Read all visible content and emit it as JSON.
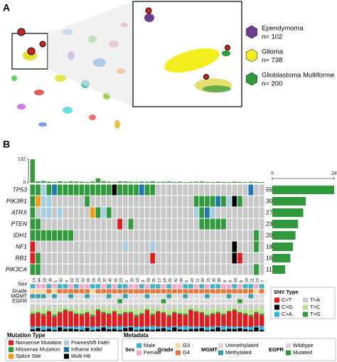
{
  "panel_a": {
    "label": "A",
    "legend": [
      {
        "name": "Ependymoma",
        "count_label": "n= 102",
        "color": "#6a3d8f"
      },
      {
        "name": "Glioma",
        "count_label": "n= 738",
        "color": "#f5ee1e"
      },
      {
        "name": "Glioblastoma Multiforme",
        "count_label": "n= 200",
        "color": "#2e9a3a"
      }
    ]
  },
  "panel_b": {
    "label": "B",
    "samples": [
      "14",
      "44",
      "18",
      "36",
      "1",
      "32",
      "4",
      "22",
      "13",
      "33",
      "26",
      "16",
      "29",
      "37",
      "40",
      "41",
      "23",
      "2",
      "20",
      "12",
      "3",
      "28",
      "31",
      "17",
      "19",
      "25",
      "42",
      "34",
      "5",
      "43",
      "11",
      "39",
      "15",
      "30",
      "38",
      "9",
      "8",
      "10",
      "6",
      "24",
      "21",
      "27",
      "7"
    ],
    "sample_counts": {
      "ylim": [
        0,
        132
      ],
      "yticks": [
        0,
        132
      ],
      "color": "#3a9a3a",
      "values": [
        132,
        8,
        10,
        7,
        5,
        9,
        6,
        8,
        7,
        6,
        5,
        7,
        25,
        9,
        6,
        5,
        8,
        7,
        6,
        5,
        7,
        6,
        8,
        5,
        6,
        7,
        5,
        6,
        4,
        5,
        6,
        7,
        5,
        4,
        6,
        5,
        4,
        6,
        5,
        4,
        6,
        5,
        4
      ]
    },
    "gene_count_axis": {
      "xlim": [
        0,
        24
      ],
      "xticks": [
        0,
        24
      ],
      "color": "#2e9a3a"
    },
    "genes": [
      {
        "name": "TP53",
        "percent_label": "55%",
        "count": 24,
        "cells": [
          1,
          1,
          3,
          1,
          4,
          1,
          1,
          1,
          1,
          1,
          1,
          1,
          1,
          1,
          1,
          5,
          1,
          1,
          1,
          1,
          4,
          1,
          1,
          null,
          null,
          null,
          null,
          null,
          null,
          null,
          null,
          null,
          null,
          null,
          null,
          null,
          null,
          null,
          null,
          null,
          4,
          null,
          null
        ]
      },
      {
        "name": "PIK3R1",
        "percent_label": "30%",
        "count": 13,
        "cells": [
          1,
          2,
          3,
          3,
          null,
          null,
          null,
          null,
          null,
          null,
          1,
          null,
          null,
          null,
          null,
          null,
          null,
          null,
          null,
          null,
          null,
          null,
          null,
          null,
          null,
          null,
          null,
          null,
          null,
          null,
          1,
          1,
          1,
          1,
          4,
          1,
          3,
          5,
          1,
          null,
          null,
          null,
          null
        ]
      },
      {
        "name": "ATRX",
        "percent_label": "27%",
        "count": 12,
        "cells": [
          1,
          null,
          3,
          3,
          null,
          3,
          null,
          null,
          null,
          null,
          null,
          2,
          1,
          3,
          1,
          null,
          null,
          null,
          null,
          null,
          null,
          null,
          null,
          null,
          null,
          null,
          null,
          null,
          null,
          null,
          3,
          1,
          4,
          3,
          null,
          null,
          null,
          null,
          null,
          null,
          null,
          null,
          null
        ]
      },
      {
        "name": "PTEN",
        "percent_label": "23%",
        "count": 10,
        "cells": [
          1,
          1,
          null,
          null,
          null,
          null,
          null,
          null,
          null,
          null,
          null,
          null,
          null,
          null,
          null,
          null,
          0,
          null,
          1,
          null,
          null,
          null,
          null,
          null,
          null,
          null,
          null,
          null,
          null,
          null,
          null,
          1,
          1,
          1,
          1,
          1,
          null,
          null,
          null,
          null,
          null,
          null,
          null
        ]
      },
      {
        "name": "IDH1",
        "percent_label": "20%",
        "count": 9,
        "cells": [
          1,
          1,
          1,
          1,
          1,
          1,
          1,
          1,
          null,
          null,
          null,
          null,
          null,
          null,
          null,
          null,
          null,
          null,
          null,
          null,
          null,
          null,
          null,
          null,
          null,
          null,
          null,
          null,
          null,
          null,
          null,
          null,
          null,
          null,
          null,
          null,
          null,
          null,
          null,
          null,
          null,
          1,
          null
        ]
      },
      {
        "name": "NF1",
        "percent_label": "18%",
        "count": 8,
        "cells": [
          0,
          null,
          null,
          null,
          null,
          null,
          null,
          null,
          null,
          null,
          null,
          null,
          null,
          null,
          null,
          null,
          null,
          3,
          null,
          null,
          null,
          null,
          3,
          null,
          null,
          null,
          null,
          null,
          null,
          null,
          null,
          null,
          null,
          null,
          null,
          null,
          null,
          5,
          null,
          null,
          null,
          1,
          null
        ]
      },
      {
        "name": "RB1",
        "percent_label": "16%",
        "count": 7,
        "cells": [
          0,
          1,
          null,
          null,
          null,
          null,
          null,
          null,
          null,
          null,
          null,
          null,
          null,
          null,
          null,
          null,
          null,
          null,
          null,
          null,
          null,
          null,
          0,
          null,
          null,
          null,
          null,
          null,
          null,
          null,
          null,
          null,
          null,
          null,
          null,
          null,
          null,
          5,
          0,
          null,
          null,
          null,
          null
        ]
      },
      {
        "name": "PIK3CA",
        "percent_label": "11%",
        "count": 5,
        "cells": [
          1,
          1,
          null,
          null,
          null,
          null,
          null,
          null,
          null,
          null,
          null,
          null,
          null,
          null,
          null,
          null,
          null,
          null,
          null,
          null,
          null,
          null,
          null,
          null,
          null,
          null,
          null,
          null,
          null,
          null,
          null,
          null,
          null,
          null,
          null,
          null,
          null,
          null,
          null,
          null,
          null,
          1,
          null
        ]
      }
    ],
    "mutation_types": {
      "title": "Mutation Type",
      "items": [
        {
          "name": "Nonsense Mutation",
          "color": "#e41a1c"
        },
        {
          "name": "Missense Mutation",
          "color": "#2e9a3a"
        },
        {
          "name": "Splice Site",
          "color": "#f39c12"
        },
        {
          "name": "Frameshift Indel",
          "color": "#a6cee3"
        },
        {
          "name": "Inframe Indel",
          "color": "#1f78b4"
        },
        {
          "name": "Multi Hit",
          "color": "#000000"
        }
      ]
    },
    "metadata": {
      "title": "Metadata",
      "tracks": [
        {
          "name": "Sex",
          "levels": [
            {
              "name": "Male",
              "color": "#3cb4c8"
            },
            {
              "name": "Female",
              "color": "#f4a8c8"
            }
          ],
          "values": [
            0,
            1,
            1,
            0,
            1,
            0,
            0,
            1,
            0,
            1,
            1,
            0,
            0,
            1,
            0,
            1,
            0,
            0,
            1,
            1,
            0,
            1,
            0,
            0,
            1,
            0,
            1,
            1,
            0,
            0,
            1,
            0,
            1,
            0,
            0,
            1,
            1,
            0,
            1,
            0,
            0,
            1,
            0
          ]
        },
        {
          "name": "Grade",
          "levels": [
            {
              "name": "G3",
              "color": "#fdd49e"
            },
            {
              "name": "G4",
              "color": "#e8743b"
            }
          ],
          "values": [
            0,
            0,
            0,
            1,
            0,
            1,
            1,
            1,
            1,
            1,
            1,
            0,
            1,
            1,
            1,
            1,
            1,
            1,
            1,
            1,
            1,
            1,
            1,
            1,
            1,
            1,
            1,
            1,
            1,
            1,
            1,
            1,
            1,
            1,
            1,
            1,
            1,
            1,
            1,
            1,
            1,
            0,
            1
          ]
        },
        {
          "name": "MGMT",
          "levels": [
            {
              "name": "Unmethylated",
              "color": "#d9d9d9"
            },
            {
              "name": "Methylated",
              "color": "#3a9ea5"
            }
          ],
          "values": [
            1,
            1,
            1,
            0,
            1,
            0,
            0,
            1,
            0,
            0,
            1,
            0,
            0,
            0,
            1,
            0,
            0,
            1,
            0,
            0,
            0,
            1,
            0,
            0,
            0,
            1,
            0,
            0,
            1,
            0,
            0,
            0,
            1,
            0,
            0,
            0,
            1,
            0,
            0,
            0,
            1,
            0,
            0
          ]
        },
        {
          "name": "EGFR",
          "levels": [
            {
              "name": "Wildtype",
              "color": "#d9d9d9"
            },
            {
              "name": "Mutated",
              "color": "#2e9a3a"
            }
          ],
          "values": [
            0,
            0,
            0,
            0,
            0,
            0,
            0,
            0,
            0,
            0,
            0,
            0,
            0,
            0,
            0,
            0,
            1,
            0,
            0,
            0,
            0,
            0,
            0,
            0,
            1,
            0,
            0,
            0,
            0,
            0,
            0,
            0,
            0,
            0,
            0,
            0,
            0,
            0,
            1,
            0,
            0,
            0,
            0
          ]
        }
      ]
    },
    "snv": {
      "title": "SNV Type",
      "ylim": [
        0,
        100
      ],
      "series": [
        {
          "name": "C>G",
          "color": "#000000",
          "values": [
            8,
            12,
            6,
            10,
            5,
            15,
            9,
            10,
            8,
            6,
            12,
            5,
            9,
            15,
            8,
            10,
            6,
            12,
            15,
            5,
            8,
            9,
            6,
            10,
            12,
            5,
            15,
            8,
            6,
            9,
            10,
            12,
            5,
            8,
            15,
            6,
            10,
            9,
            12,
            8,
            5,
            15,
            6
          ]
        },
        {
          "name": "C>A",
          "color": "#29b6e6",
          "values": [
            10,
            6,
            14,
            8,
            12,
            5,
            9,
            8,
            10,
            14,
            6,
            12,
            9,
            5,
            10,
            8,
            14,
            6,
            5,
            12,
            10,
            9,
            14,
            8,
            6,
            12,
            5,
            10,
            14,
            9,
            8,
            6,
            12,
            10,
            5,
            14,
            8,
            9,
            6,
            10,
            12,
            5,
            14
          ]
        },
        {
          "name": "C>T",
          "color": "#e41a1c",
          "values": [
            45,
            50,
            40,
            55,
            38,
            48,
            60,
            55,
            45,
            40,
            50,
            38,
            60,
            48,
            45,
            55,
            40,
            50,
            48,
            38,
            45,
            60,
            40,
            55,
            50,
            38,
            48,
            45,
            40,
            60,
            55,
            50,
            38,
            45,
            48,
            40,
            55,
            60,
            50,
            45,
            38,
            48,
            40
          ]
        },
        {
          "name": "T>G",
          "color": "#2e9a3a",
          "values": [
            5,
            4,
            6,
            3,
            7,
            5,
            4,
            3,
            5,
            6,
            4,
            7,
            4,
            5,
            5,
            3,
            6,
            4,
            5,
            7,
            5,
            4,
            6,
            3,
            4,
            7,
            5,
            5,
            6,
            4,
            3,
            4,
            7,
            5,
            5,
            6,
            3,
            4,
            4,
            5,
            7,
            5,
            6
          ]
        },
        {
          "name": "T>C",
          "color": "#b8e08a",
          "values": [
            17,
            13,
            20,
            12,
            18,
            15,
            10,
            12,
            17,
            20,
            13,
            18,
            10,
            15,
            17,
            12,
            20,
            13,
            15,
            18,
            17,
            10,
            20,
            12,
            13,
            18,
            15,
            17,
            20,
            10,
            12,
            13,
            18,
            17,
            15,
            20,
            12,
            10,
            13,
            17,
            18,
            15,
            20
          ]
        },
        {
          "name": "T>A",
          "color": "#cccccc",
          "values": [
            15,
            15,
            14,
            12,
            20,
            12,
            8,
            12,
            15,
            14,
            15,
            20,
            8,
            12,
            15,
            12,
            14,
            15,
            12,
            20,
            15,
            8,
            14,
            12,
            15,
            20,
            12,
            15,
            14,
            8,
            12,
            15,
            20,
            15,
            12,
            14,
            12,
            8,
            15,
            15,
            20,
            12,
            14
          ]
        }
      ]
    }
  }
}
